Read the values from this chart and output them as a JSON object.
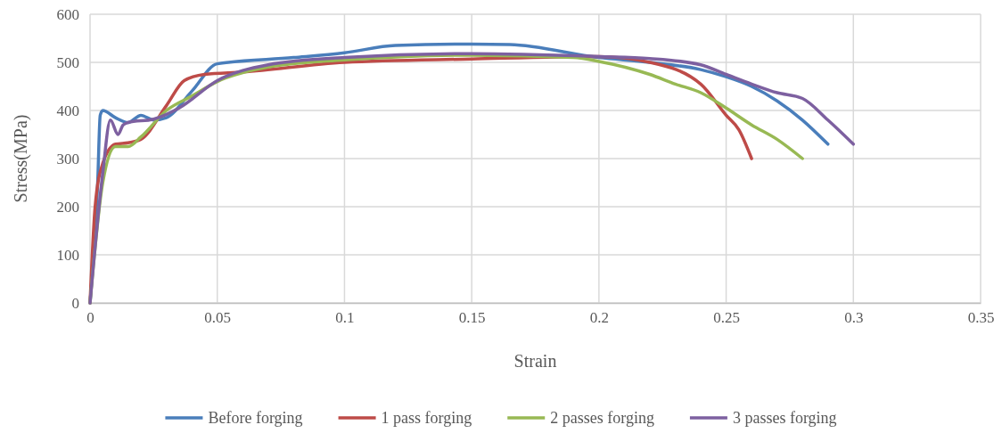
{
  "chart_data": {
    "type": "line",
    "xlabel": "Strain",
    "ylabel": "Stress(MPa)",
    "xlim": [
      0,
      0.35
    ],
    "xticks": [
      0,
      0.05,
      0.1,
      0.15,
      0.2,
      0.25,
      0.3,
      0.35
    ],
    "ylim": [
      0,
      600
    ],
    "yticks": [
      0,
      100,
      200,
      300,
      400,
      500,
      600
    ],
    "grid": true,
    "legend": "bottom",
    "marker": "none",
    "line_style": "solid",
    "series": [
      {
        "name": "Before forging",
        "color": "#4a7ebb",
        "x": [
          0,
          0.003,
          0.004,
          0.005,
          0.01,
          0.015,
          0.02,
          0.025,
          0.03,
          0.04,
          0.05,
          0.08,
          0.1,
          0.12,
          0.15,
          0.165,
          0.2,
          0.22,
          0.24,
          0.25,
          0.26,
          0.27,
          0.28,
          0.29
        ],
        "values": [
          0,
          250,
          390,
          400,
          385,
          375,
          390,
          380,
          385,
          440,
          497,
          510,
          520,
          535,
          538,
          537,
          510,
          500,
          485,
          470,
          450,
          420,
          380,
          330
        ]
      },
      {
        "name": "1 pass forging",
        "color": "#be4b48",
        "x": [
          0,
          0.002,
          0.005,
          0.01,
          0.015,
          0.02,
          0.03,
          0.037,
          0.045,
          0.06,
          0.1,
          0.15,
          0.2,
          0.22,
          0.24,
          0.25,
          0.255,
          0.26
        ],
        "values": [
          0,
          200,
          290,
          330,
          333,
          340,
          410,
          462,
          475,
          480,
          500,
          507,
          512,
          500,
          455,
          390,
          360,
          300
        ]
      },
      {
        "name": "2 passes forging",
        "color": "#98b954",
        "x": [
          0,
          0.005,
          0.01,
          0.015,
          0.02,
          0.03,
          0.04,
          0.05,
          0.07,
          0.1,
          0.15,
          0.19,
          0.2,
          0.22,
          0.23,
          0.24,
          0.25,
          0.26,
          0.27,
          0.28
        ],
        "values": [
          0,
          250,
          325,
          325,
          345,
          400,
          430,
          460,
          490,
          505,
          515,
          510,
          502,
          475,
          455,
          437,
          405,
          370,
          340,
          300
        ]
      },
      {
        "name": "3 passes forging",
        "color": "#7d60a0",
        "x": [
          0,
          0.005,
          0.008,
          0.011,
          0.013,
          0.015,
          0.025,
          0.035,
          0.05,
          0.07,
          0.1,
          0.15,
          0.2,
          0.22,
          0.24,
          0.25,
          0.26,
          0.27,
          0.28,
          0.29,
          0.3
        ],
        "values": [
          0,
          270,
          380,
          350,
          370,
          375,
          382,
          405,
          462,
          495,
          510,
          518,
          512,
          508,
          495,
          475,
          455,
          437,
          425,
          380,
          330
        ]
      }
    ]
  }
}
